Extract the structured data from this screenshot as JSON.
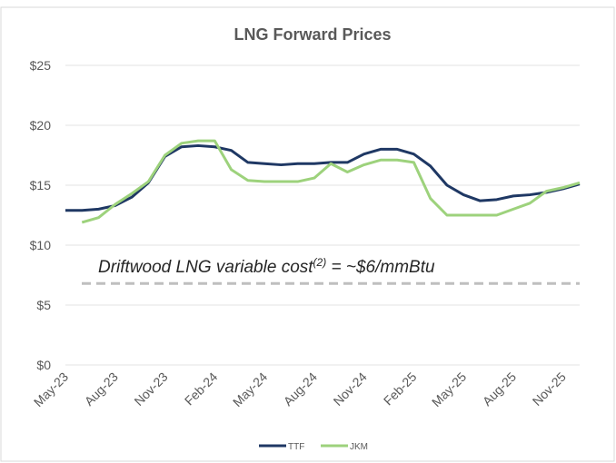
{
  "chart_data": {
    "type": "line",
    "title": "LNG Forward Prices",
    "categories": [
      "May-23",
      null,
      null,
      "Aug-23",
      null,
      null,
      "Nov-23",
      null,
      null,
      "Feb-24",
      null,
      null,
      "May-24",
      null,
      null,
      "Aug-24",
      null,
      null,
      "Nov-24",
      null,
      null,
      "Feb-25",
      null,
      null,
      "May-25",
      null,
      null,
      "Aug-25",
      null,
      null,
      "Nov-25",
      null
    ],
    "series": [
      {
        "name": "TTF",
        "color": "#1f3864",
        "values": [
          12.9,
          12.9,
          13.0,
          13.3,
          14.0,
          15.2,
          17.4,
          18.2,
          18.3,
          18.2,
          17.9,
          16.9,
          16.8,
          16.7,
          16.8,
          16.8,
          16.9,
          16.9,
          17.6,
          18.0,
          18.0,
          17.6,
          16.6,
          15.0,
          14.2,
          13.7,
          13.8,
          14.1,
          14.2,
          14.4,
          14.7,
          15.1
        ]
      },
      {
        "name": "JKM",
        "color": "#9dd27c",
        "values": [
          null,
          11.9,
          12.3,
          13.4,
          14.3,
          15.3,
          17.5,
          18.5,
          18.7,
          18.7,
          16.3,
          15.4,
          15.3,
          15.3,
          15.3,
          15.6,
          16.8,
          16.1,
          16.7,
          17.1,
          17.1,
          16.9,
          13.9,
          12.5,
          12.5,
          12.5,
          12.5,
          13.0,
          13.5,
          14.5,
          14.8,
          15.2
        ]
      }
    ],
    "ylim": [
      0,
      25
    ],
    "yticks": [
      {
        "value": 0,
        "label": "$0"
      },
      {
        "value": 5,
        "label": "$5"
      },
      {
        "value": 10,
        "label": "$10"
      },
      {
        "value": 15,
        "label": "$15"
      },
      {
        "value": 20,
        "label": "$20"
      },
      {
        "value": 25,
        "label": "$25"
      }
    ],
    "grid": true,
    "legend": "bottom",
    "reference_line": {
      "value": 6.8,
      "color": "#bfbfbf"
    },
    "annotation": [
      "Driftwood LNG variable cost",
      "(2)",
      " = ~$6/mmBtu"
    ]
  }
}
